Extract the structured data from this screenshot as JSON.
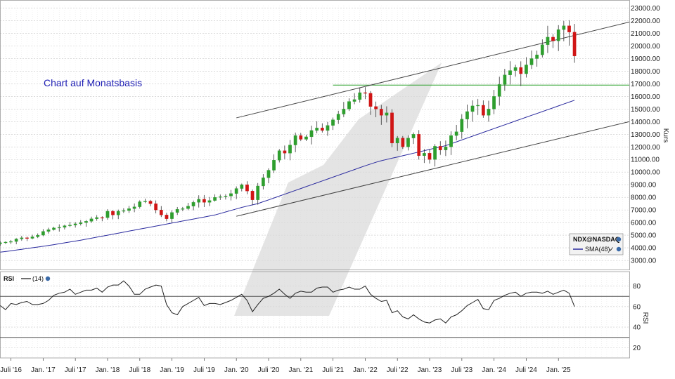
{
  "chart_data": [
    {
      "type": "candlestick",
      "annotation": "Chart auf Monatsbasis",
      "ylabel": "Kurs",
      "ylim": [
        2500,
        23200
      ],
      "yticks": [
        "3000.00",
        "4000.00",
        "5000.00",
        "6000.00",
        "7000.00",
        "8000.00",
        "9000.00",
        "10000.00",
        "11000.00",
        "12000.00",
        "13000.00",
        "14000.00",
        "15000.00",
        "16000.00",
        "17000.00",
        "18000.00",
        "19000.00",
        "20000.00",
        "21000.00",
        "22000.00",
        "23000.00"
      ],
      "xticks": [
        {
          "label": "Juli '16",
          "t": 2016.5
        },
        {
          "label": "Jan. '17",
          "t": 2017.0
        },
        {
          "label": "Juli '17",
          "t": 2017.5
        },
        {
          "label": "Jan. '18",
          "t": 2018.0
        },
        {
          "label": "Juli '18",
          "t": 2018.5
        },
        {
          "label": "Jan. '19",
          "t": 2019.0
        },
        {
          "label": "Juli '19",
          "t": 2019.5
        },
        {
          "label": "Jan. '20",
          "t": 2020.0
        },
        {
          "label": "Juli '20",
          "t": 2020.5
        },
        {
          "label": "Jan. '21",
          "t": 2021.0
        },
        {
          "label": "Juli '21",
          "t": 2021.5
        },
        {
          "label": "Jan. '22",
          "t": 2022.0
        },
        {
          "label": "Juli '22",
          "t": 2022.5
        },
        {
          "label": "Jan. '23",
          "t": 2023.0
        },
        {
          "label": "Juli '23",
          "t": 2023.5
        },
        {
          "label": "Jan. '24",
          "t": 2024.0
        },
        {
          "label": "Juli '24",
          "t": 2024.5
        },
        {
          "label": "Jan. '25",
          "t": 2025.0
        }
      ],
      "xlim": [
        2016.33,
        2026.1
      ],
      "grid": true,
      "legend": {
        "position": "bottom-right",
        "symbol": "NDX@NASDAQ",
        "sma_label": "SMA(48)"
      },
      "colors": {
        "up": "#2e9e2e",
        "down": "#d01515",
        "sma": "#2a2a9e",
        "trend": "#444444",
        "support": "#2aa02a"
      },
      "monthly_close": [
        4400,
        4450,
        4500,
        4700,
        4790,
        4750,
        4870,
        5000,
        5300,
        5430,
        5580,
        5620,
        5750,
        5800,
        5900,
        6000,
        6100,
        6300,
        6400,
        6390,
        6900,
        6600,
        6900,
        6950,
        7100,
        7250,
        7650,
        7700,
        7500,
        7000,
        6600,
        6300,
        6800,
        7050,
        7100,
        7300,
        7600,
        7850,
        7600,
        7750,
        8000,
        8050,
        8100,
        8300,
        8700,
        9000,
        8500,
        7800,
        8900,
        9550,
        10150,
        10950,
        11700,
        11500,
        12150,
        12900,
        12600,
        12800,
        13300,
        13500,
        13300,
        13700,
        14150,
        14600,
        15000,
        15600,
        15750,
        16300,
        16250,
        15200,
        15000,
        14500,
        14700,
        12300,
        12700,
        12000,
        12700,
        13000,
        11300,
        11500,
        11000,
        12050,
        11750,
        12000,
        12900,
        13200,
        14200,
        14800,
        15250,
        15300,
        14500,
        15000,
        16000,
        16950,
        17700,
        18050,
        18300,
        17800,
        18500,
        19000,
        19300,
        20100,
        20700,
        20400,
        21300,
        21600,
        21100,
        19200
      ],
      "sma48": [
        3650,
        3700,
        3760,
        3820,
        3880,
        3940,
        4000,
        4060,
        4120,
        4180,
        4250,
        4320,
        4390,
        4460,
        4530,
        4600,
        4680,
        4760,
        4840,
        4920,
        5000,
        5080,
        5160,
        5240,
        5320,
        5400,
        5480,
        5560,
        5640,
        5720,
        5800,
        5880,
        5960,
        6040,
        6120,
        6200,
        6280,
        6360,
        6440,
        6520,
        6600,
        6720,
        6840,
        6960,
        7080,
        7200,
        7300,
        7400,
        7500,
        7650,
        7800,
        7950,
        8100,
        8250,
        8400,
        8550,
        8700,
        8850,
        9000,
        9150,
        9300,
        9450,
        9600,
        9750,
        9900,
        10050,
        10200,
        10350,
        10500,
        10640,
        10780,
        10900,
        11000,
        11100,
        11200,
        11300,
        11400,
        11500,
        11600,
        11700,
        11800,
        11900,
        12000,
        12100,
        12250,
        12400,
        12550,
        12700,
        12850,
        13000,
        13150,
        13300,
        13450,
        13600,
        13750,
        13900,
        14050,
        14200,
        14350,
        14500,
        14650,
        14800,
        14950,
        15100,
        15250,
        15400,
        15550,
        15700
      ],
      "support_level": 16900,
      "trend_lines": [
        {
          "t1": 2020.0,
          "v1": 6500,
          "t2": 2026.1,
          "v2": 14000
        },
        {
          "t1": 2020.0,
          "v1": 14300,
          "t2": 2026.1,
          "v2": 21900
        }
      ]
    },
    {
      "type": "line",
      "title": "RSI",
      "series_label": "(14)",
      "ylim": [
        10,
        92
      ],
      "yticks": [
        20,
        40,
        60,
        80
      ],
      "reference_lines": [
        70,
        30
      ],
      "values": [
        61,
        57,
        63,
        62,
        64,
        65,
        62,
        62,
        63,
        66,
        71,
        73,
        74,
        77,
        72,
        74,
        76,
        76,
        78,
        74,
        79,
        81,
        81,
        85,
        80,
        72,
        72,
        77,
        79,
        81,
        80,
        62,
        54,
        52,
        60,
        63,
        66,
        69,
        61,
        63,
        63,
        62,
        64,
        66,
        69,
        72,
        66,
        55,
        62,
        68,
        70,
        73,
        77,
        72,
        68,
        73,
        75,
        74,
        74,
        78,
        79,
        79,
        74,
        76,
        77,
        79,
        77,
        77,
        80,
        72,
        68,
        65,
        66,
        54,
        56,
        50,
        48,
        52,
        48,
        45,
        44,
        47,
        48,
        44,
        50,
        52,
        56,
        61,
        64,
        67,
        58,
        57,
        66,
        68,
        71,
        73,
        74,
        70,
        73,
        74,
        74,
        73,
        75,
        72,
        74,
        76,
        73,
        60
      ]
    }
  ]
}
